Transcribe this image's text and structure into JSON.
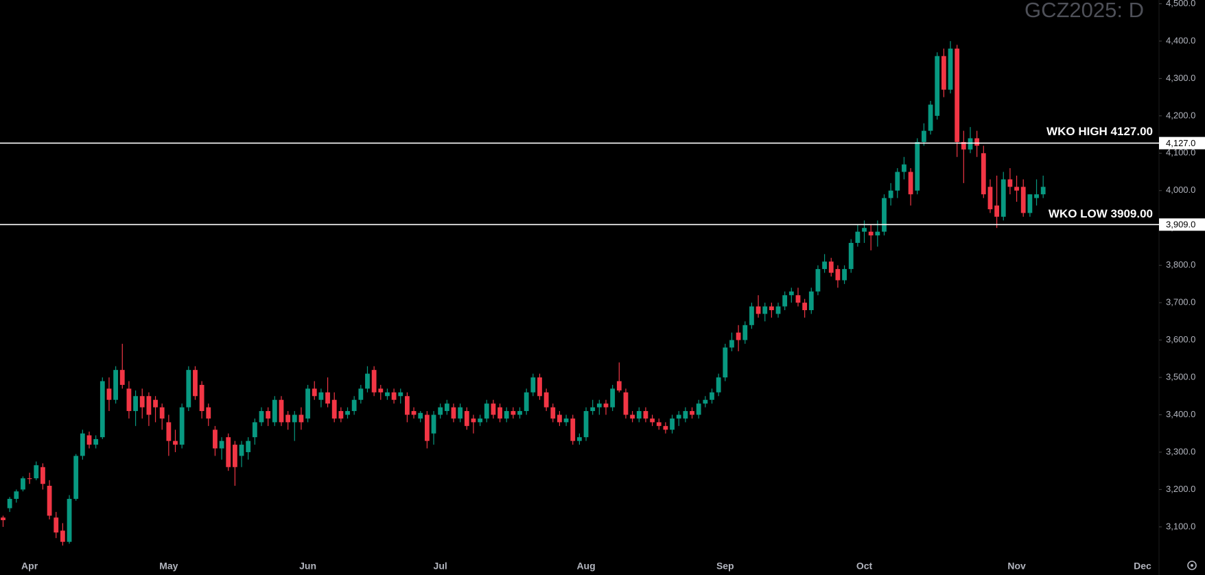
{
  "chart_data": {
    "type": "candlestick",
    "title": "GCZ2025: D",
    "up_color": "#089981",
    "down_color": "#f23645",
    "categories": [
      null,
      null,
      null,
      null,
      "Apr",
      null,
      null,
      null,
      null,
      null,
      null,
      null,
      null,
      null,
      null,
      null,
      null,
      null,
      null,
      null,
      null,
      null,
      null,
      null,
      null,
      "May",
      null,
      null,
      null,
      null,
      null,
      null,
      null,
      null,
      null,
      null,
      null,
      null,
      null,
      null,
      null,
      null,
      null,
      null,
      null,
      null,
      "Jun",
      null,
      null,
      null,
      null,
      null,
      null,
      null,
      null,
      null,
      null,
      null,
      null,
      null,
      null,
      null,
      null,
      null,
      null,
      null,
      "Jul",
      null,
      null,
      null,
      null,
      null,
      null,
      null,
      null,
      null,
      null,
      null,
      null,
      null,
      null,
      null,
      null,
      null,
      null,
      null,
      null,
      null,
      "Aug",
      null,
      null,
      null,
      null,
      null,
      null,
      null,
      null,
      null,
      null,
      null,
      null,
      null,
      null,
      null,
      null,
      null,
      null,
      null,
      null,
      "Sep",
      null,
      null,
      null,
      null,
      null,
      null,
      null,
      null,
      null,
      null,
      null,
      null,
      null,
      null,
      null,
      null,
      null,
      null,
      null,
      null,
      "Oct",
      null,
      null,
      null,
      null,
      null,
      null,
      null,
      null,
      null,
      null,
      null,
      null,
      null,
      null,
      null,
      null,
      null,
      null,
      null,
      null,
      null,
      null,
      "Nov",
      null,
      null,
      null,
      null,
      null,
      null,
      null,
      null,
      null,
      null,
      null,
      null,
      null,
      null,
      null,
      null,
      null,
      null,
      "Dec"
    ],
    "open": [
      3125,
      3150,
      3175,
      3200,
      3230,
      3230,
      3260,
      3210,
      3125,
      3090,
      3060,
      3175,
      3290,
      3345,
      3320,
      3340,
      3470,
      3440,
      3520,
      3470,
      3410,
      3450,
      3450,
      3440,
      3420,
      3380,
      3330,
      3320,
      3420,
      3520,
      3480,
      3420,
      3360,
      3310,
      3340,
      3320,
      3290,
      3300,
      3340,
      3380,
      3410,
      3380,
      3440,
      3400,
      3380,
      3400,
      3390,
      3470,
      3440,
      3460,
      3440,
      3410,
      3400,
      3410,
      3440,
      3470,
      3520,
      3470,
      3450,
      3460,
      3450,
      3450,
      3410,
      3390,
      3400,
      3350,
      3400,
      3410,
      3420,
      3390,
      3410,
      3390,
      3380,
      3390,
      3430,
      3420,
      3390,
      3410,
      3400,
      3410,
      3460,
      3500,
      3460,
      3420,
      3400,
      3380,
      3390,
      3330,
      3340,
      3410,
      3420,
      3430,
      3420,
      3490,
      3460,
      3400,
      3390,
      3410,
      3390,
      3380,
      3370,
      3360,
      3390,
      3390,
      3410,
      3400,
      3430,
      3440,
      3460,
      3500,
      3580,
      3620,
      3600,
      3640,
      3690,
      3670,
      3690,
      3670,
      3690,
      3720,
      3720,
      3700,
      3680,
      3730,
      3790,
      3810,
      3790,
      3760,
      3790,
      3860,
      3890,
      3890,
      3880,
      3890,
      3980,
      4000,
      4050,
      4050,
      4000,
      4130,
      4160,
      4200,
      4360,
      4270,
      4380,
      4130,
      4110,
      4140,
      4100,
      4010,
      3960,
      3930,
      4030,
      4010,
      4010,
      3940,
      3980,
      3990,
      null,
      null,
      null,
      null,
      null,
      null,
      null,
      null,
      null,
      null,
      null,
      null,
      null,
      null,
      null
    ],
    "high": [
      3130,
      3180,
      3200,
      3235,
      3245,
      3275,
      3270,
      3225,
      3140,
      3110,
      3185,
      3295,
      3360,
      3355,
      3345,
      3500,
      3500,
      3530,
      3590,
      3490,
      3465,
      3470,
      3460,
      3450,
      3430,
      3400,
      3360,
      3430,
      3530,
      3530,
      3490,
      3430,
      3370,
      3340,
      3350,
      3330,
      3330,
      3340,
      3390,
      3420,
      3420,
      3450,
      3450,
      3410,
      3410,
      3420,
      3480,
      3490,
      3470,
      3500,
      3460,
      3420,
      3420,
      3450,
      3480,
      3530,
      3530,
      3480,
      3470,
      3470,
      3470,
      3460,
      3420,
      3410,
      3410,
      3410,
      3430,
      3440,
      3430,
      3430,
      3420,
      3400,
      3400,
      3440,
      3440,
      3430,
      3420,
      3420,
      3420,
      3470,
      3510,
      3510,
      3470,
      3430,
      3410,
      3400,
      3400,
      3350,
      3420,
      3440,
      3440,
      3440,
      3480,
      3540,
      3470,
      3410,
      3420,
      3420,
      3400,
      3390,
      3380,
      3400,
      3410,
      3420,
      3420,
      3440,
      3450,
      3470,
      3510,
      3590,
      3620,
      3640,
      3650,
      3700,
      3720,
      3700,
      3700,
      3700,
      3730,
      3740,
      3740,
      3710,
      3740,
      3800,
      3830,
      3820,
      3800,
      3800,
      3870,
      3910,
      3920,
      3910,
      3920,
      3990,
      4020,
      4060,
      4090,
      4060,
      4140,
      4180,
      4240,
      4370,
      4380,
      4400,
      4390,
      4160,
      4170,
      4160,
      4120,
      4030,
      4040,
      4050,
      4060,
      4040,
      4030,
      3990,
      4030,
      4040,
      null,
      null,
      null,
      null,
      null,
      null,
      null,
      null,
      null,
      null,
      null,
      null,
      null,
      null,
      null
    ],
    "low": [
      3100,
      3140,
      3165,
      3195,
      3215,
      3225,
      3200,
      3120,
      3070,
      3050,
      3055,
      3170,
      3280,
      3310,
      3310,
      3335,
      3410,
      3430,
      3470,
      3390,
      3370,
      3390,
      3370,
      3380,
      3360,
      3290,
      3300,
      3310,
      3410,
      3440,
      3390,
      3370,
      3290,
      3280,
      3250,
      3210,
      3260,
      3280,
      3320,
      3370,
      3370,
      3370,
      3370,
      3360,
      3330,
      3360,
      3380,
      3440,
      3420,
      3420,
      3380,
      3380,
      3390,
      3400,
      3430,
      3460,
      3450,
      3440,
      3440,
      3430,
      3430,
      3380,
      3390,
      3380,
      3310,
      3320,
      3390,
      3400,
      3380,
      3380,
      3360,
      3350,
      3370,
      3380,
      3390,
      3380,
      3380,
      3390,
      3390,
      3400,
      3450,
      3440,
      3410,
      3380,
      3370,
      3370,
      3320,
      3320,
      3330,
      3400,
      3400,
      3400,
      3410,
      3460,
      3390,
      3380,
      3380,
      3380,
      3370,
      3360,
      3350,
      3350,
      3370,
      3380,
      3390,
      3390,
      3420,
      3430,
      3450,
      3490,
      3570,
      3570,
      3590,
      3630,
      3660,
      3650,
      3660,
      3660,
      3680,
      3700,
      3690,
      3660,
      3670,
      3720,
      3780,
      3770,
      3740,
      3750,
      3780,
      3850,
      3860,
      3840,
      3850,
      3880,
      3960,
      3980,
      4030,
      3960,
      3990,
      4120,
      4150,
      4190,
      4250,
      4260,
      4090,
      4020,
      4100,
      4090,
      3980,
      3940,
      3900,
      3920,
      3990,
      3970,
      3930,
      3930,
      3960,
      3980,
      null,
      null,
      null,
      null,
      null,
      null,
      null,
      null,
      null,
      null,
      null,
      null,
      null,
      null,
      null
    ],
    "close": [
      3118,
      3175,
      3195,
      3230,
      3228,
      3265,
      3215,
      3130,
      3085,
      3060,
      3175,
      3290,
      3350,
      3320,
      3335,
      3490,
      3440,
      3520,
      3480,
      3410,
      3450,
      3420,
      3400,
      3420,
      3390,
      3330,
      3320,
      3420,
      3520,
      3450,
      3410,
      3390,
      3310,
      3330,
      3260,
      3260,
      3320,
      3330,
      3380,
      3410,
      3390,
      3440,
      3380,
      3380,
      3400,
      3380,
      3470,
      3450,
      3460,
      3430,
      3390,
      3390,
      3410,
      3440,
      3470,
      3510,
      3460,
      3460,
      3460,
      3440,
      3460,
      3400,
      3400,
      3405,
      3330,
      3400,
      3420,
      3430,
      3390,
      3420,
      3370,
      3380,
      3390,
      3430,
      3400,
      3390,
      3410,
      3400,
      3410,
      3460,
      3500,
      3450,
      3420,
      3390,
      3380,
      3390,
      3330,
      3340,
      3410,
      3420,
      3430,
      3420,
      3470,
      3465,
      3400,
      3390,
      3410,
      3390,
      3380,
      3370,
      3360,
      3390,
      3400,
      3410,
      3400,
      3430,
      3440,
      3460,
      3500,
      3580,
      3600,
      3600,
      3640,
      3690,
      3670,
      3690,
      3680,
      3690,
      3720,
      3730,
      3700,
      3680,
      3730,
      3790,
      3810,
      3780,
      3760,
      3790,
      3860,
      3890,
      3900,
      3880,
      3890,
      3980,
      4000,
      4050,
      4070,
      3990,
      4130,
      4160,
      4230,
      4360,
      4270,
      4380,
      4130,
      4110,
      4140,
      4120,
      3990,
      3950,
      3930,
      4030,
      4010,
      4000,
      3940,
      3990,
      3990,
      4010,
      null,
      null,
      null,
      null,
      null,
      null,
      null,
      null,
      null,
      null,
      null,
      null,
      null,
      null,
      null
    ],
    "ylim": [
      3030,
      4510
    ],
    "yticks": [
      {
        "value": 3100,
        "label": "3,100.0"
      },
      {
        "value": 3200,
        "label": "3,200.0"
      },
      {
        "value": 3300,
        "label": "3,300.0"
      },
      {
        "value": 3400,
        "label": "3,400.0"
      },
      {
        "value": 3500,
        "label": "3,500.0"
      },
      {
        "value": 3600,
        "label": "3,600.0"
      },
      {
        "value": 3700,
        "label": "3,700.0"
      },
      {
        "value": 3800,
        "label": "3,800.0"
      },
      {
        "value": 3900,
        "label": "3,900.0"
      },
      {
        "value": 4000,
        "label": "4,000.0"
      },
      {
        "value": 4100,
        "label": "4,100.0"
      },
      {
        "value": 4200,
        "label": "4,200.0"
      },
      {
        "value": 4300,
        "label": "4,300.0"
      },
      {
        "value": 4400,
        "label": "4,400.0"
      },
      {
        "value": 4500,
        "label": "4,500.0"
      }
    ],
    "hlines": [
      {
        "value": 4127,
        "label": "WKO HIGH 4127.00",
        "axis_label": "4,127.0"
      },
      {
        "value": 3909,
        "label": "WKO LOW 3909.00",
        "axis_label": "3,909.0"
      }
    ],
    "line_color": "#ffffff"
  }
}
